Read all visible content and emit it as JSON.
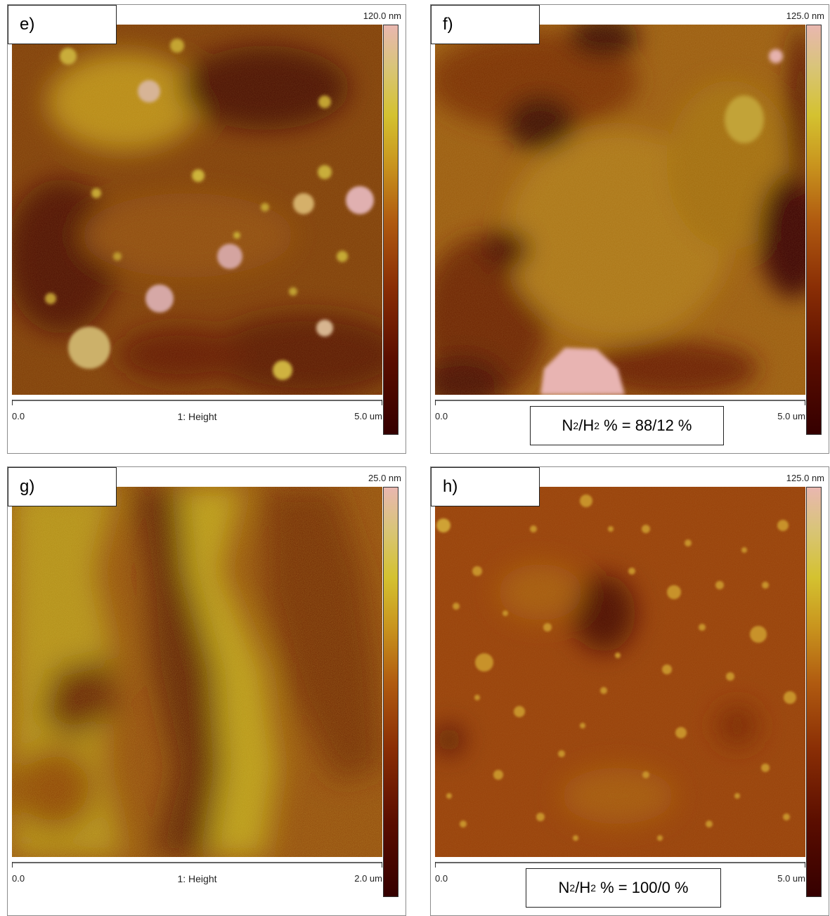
{
  "panels": [
    {
      "label": "e)",
      "scale_max": "120.0 nm",
      "axis_start": "0.0",
      "axis_title": "1: Height",
      "axis_end": "5.0 um"
    },
    {
      "label": "f)",
      "scale_max": "125.0 nm",
      "axis_start": "0.0",
      "axis_end": "5.0 um",
      "gas": {
        "n": "N",
        "n_sub": "2",
        "slash": "/H",
        "h_sub": "2",
        "ratio": " % = 88/12 %"
      }
    },
    {
      "label": "g)",
      "scale_max": "25.0 nm",
      "axis_start": "0.0",
      "axis_title": "1: Height",
      "axis_end": "2.0 um"
    },
    {
      "label": "h)",
      "scale_max": "125.0 nm",
      "axis_start": "0.0",
      "axis_end": "5.0 um",
      "gas": {
        "n": "N",
        "n_sub": "2",
        "slash": "/H",
        "h_sub": "2",
        "ratio": " % = 100/0 %"
      }
    }
  ],
  "colormap": [
    "#350000",
    "#5a0d00",
    "#8a2e05",
    "#b05a10",
    "#c9951e",
    "#d4c230",
    "#d9c47a",
    "#e9b7b0"
  ]
}
